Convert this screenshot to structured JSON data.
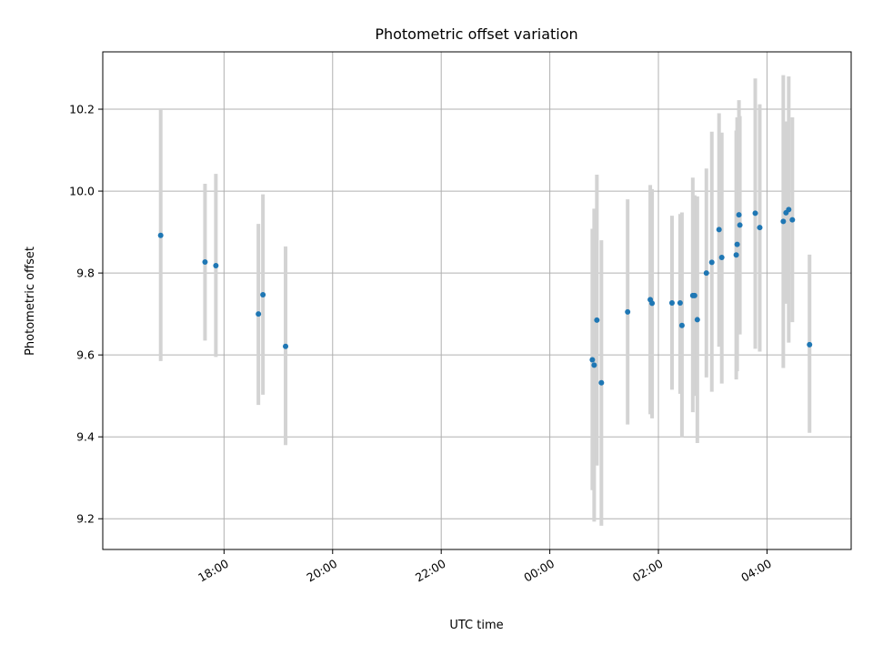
{
  "chart_data": {
    "type": "scatter",
    "title": "Photometric offset variation",
    "xlabel": "UTC time",
    "ylabel": "Photometric offset",
    "x_ticks": [
      "18:00",
      "20:00",
      "22:00",
      "00:00",
      "02:00",
      "04:00"
    ],
    "y_ticks": [
      "9.2",
      "9.4",
      "9.6",
      "9.8",
      "10.0",
      "10.2"
    ],
    "grid": true,
    "colors": {
      "point": "#1f77b4",
      "errorbar": "#d3d3d3",
      "grid": "#b0b0b0"
    },
    "points": [
      {
        "t": "16:50",
        "y": 9.892,
        "lo": 9.585,
        "hi": 10.2
      },
      {
        "t": "17:39",
        "y": 9.827,
        "lo": 9.635,
        "hi": 10.018
      },
      {
        "t": "17:51",
        "y": 9.818,
        "lo": 9.595,
        "hi": 10.042
      },
      {
        "t": "18:38",
        "y": 9.7,
        "lo": 9.478,
        "hi": 9.92
      },
      {
        "t": "18:43",
        "y": 9.747,
        "lo": 9.503,
        "hi": 9.992
      },
      {
        "t": "19:08",
        "y": 9.621,
        "lo": 9.38,
        "hi": 9.865
      },
      {
        "t": "00:47",
        "y": 9.588,
        "lo": 9.27,
        "hi": 9.908
      },
      {
        "t": "00:49",
        "y": 9.575,
        "lo": 9.193,
        "hi": 9.957
      },
      {
        "t": "00:52",
        "y": 9.685,
        "lo": 9.33,
        "hi": 10.04
      },
      {
        "t": "00:57",
        "y": 9.532,
        "lo": 9.183,
        "hi": 9.88
      },
      {
        "t": "01:26",
        "y": 9.705,
        "lo": 9.43,
        "hi": 9.98
      },
      {
        "t": "01:51",
        "y": 9.735,
        "lo": 9.455,
        "hi": 10.015
      },
      {
        "t": "01:53",
        "y": 9.726,
        "lo": 9.445,
        "hi": 10.005
      },
      {
        "t": "02:15",
        "y": 9.727,
        "lo": 9.515,
        "hi": 9.94
      },
      {
        "t": "02:24",
        "y": 9.727,
        "lo": 9.505,
        "hi": 9.944
      },
      {
        "t": "02:26",
        "y": 9.672,
        "lo": 9.398,
        "hi": 9.948
      },
      {
        "t": "02:38",
        "y": 9.745,
        "lo": 9.46,
        "hi": 10.033
      },
      {
        "t": "02:40",
        "y": 9.745,
        "lo": 9.5,
        "hi": 9.99
      },
      {
        "t": "02:43",
        "y": 9.686,
        "lo": 9.385,
        "hi": 9.987
      },
      {
        "t": "02:53",
        "y": 9.8,
        "lo": 9.545,
        "hi": 10.055
      },
      {
        "t": "02:59",
        "y": 9.826,
        "lo": 9.51,
        "hi": 10.145
      },
      {
        "t": "03:07",
        "y": 9.906,
        "lo": 9.62,
        "hi": 10.19
      },
      {
        "t": "03:10",
        "y": 9.838,
        "lo": 9.53,
        "hi": 10.143
      },
      {
        "t": "03:26",
        "y": 9.844,
        "lo": 9.54,
        "hi": 10.148
      },
      {
        "t": "03:27",
        "y": 9.87,
        "lo": 9.56,
        "hi": 10.18
      },
      {
        "t": "03:29",
        "y": 9.942,
        "lo": 9.66,
        "hi": 10.222
      },
      {
        "t": "03:30",
        "y": 9.917,
        "lo": 9.65,
        "hi": 10.183
      },
      {
        "t": "03:47",
        "y": 9.946,
        "lo": 9.615,
        "hi": 10.275
      },
      {
        "t": "03:52",
        "y": 9.911,
        "lo": 9.608,
        "hi": 10.212
      },
      {
        "t": "04:18",
        "y": 9.926,
        "lo": 9.568,
        "hi": 10.283
      },
      {
        "t": "04:21",
        "y": 9.947,
        "lo": 9.725,
        "hi": 10.17
      },
      {
        "t": "04:24",
        "y": 9.955,
        "lo": 9.63,
        "hi": 10.28
      },
      {
        "t": "04:28",
        "y": 9.93,
        "lo": 9.68,
        "hi": 10.18
      },
      {
        "t": "04:47",
        "y": 9.625,
        "lo": 9.41,
        "hi": 9.845
      }
    ]
  }
}
